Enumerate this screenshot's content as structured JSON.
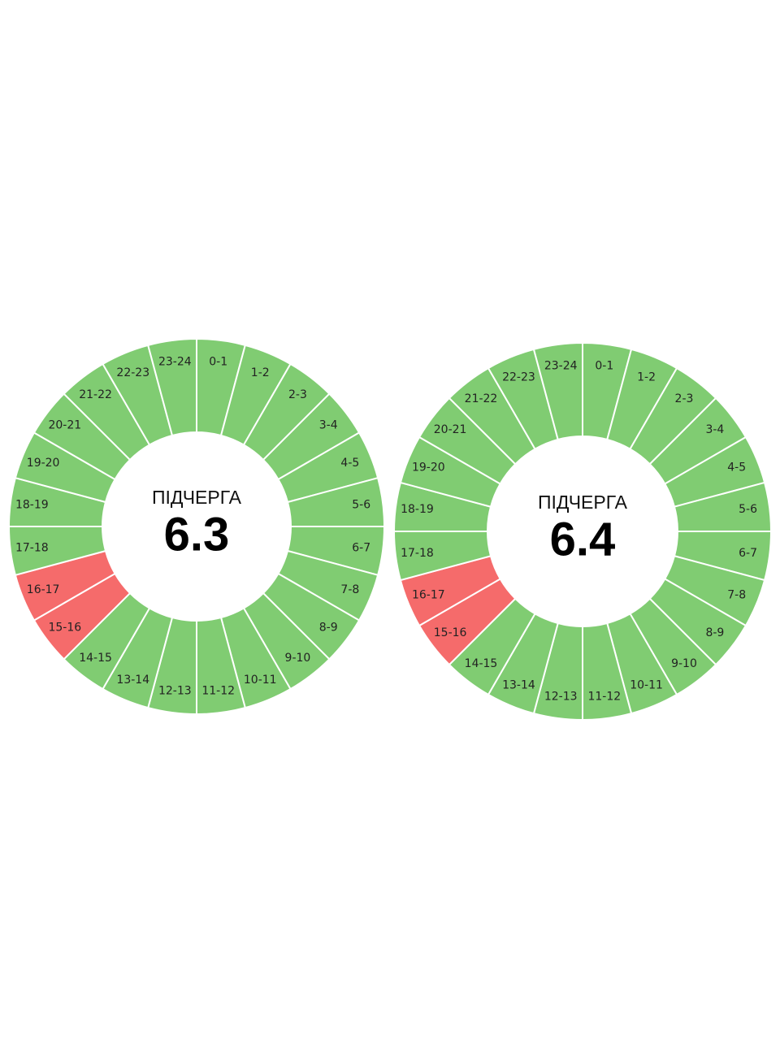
{
  "dials": [
    {
      "title": "ПІДЧЕРГА",
      "number": "6.3",
      "segments": [
        {
          "label": "0-1",
          "color": "#80cc72"
        },
        {
          "label": "1-2",
          "color": "#80cc72"
        },
        {
          "label": "2-3",
          "color": "#80cc72"
        },
        {
          "label": "3-4",
          "color": "#80cc72"
        },
        {
          "label": "4-5",
          "color": "#80cc72"
        },
        {
          "label": "5-6",
          "color": "#80cc72"
        },
        {
          "label": "6-7",
          "color": "#80cc72"
        },
        {
          "label": "7-8",
          "color": "#80cc72"
        },
        {
          "label": "8-9",
          "color": "#80cc72"
        },
        {
          "label": "9-10",
          "color": "#80cc72"
        },
        {
          "label": "10-11",
          "color": "#80cc72"
        },
        {
          "label": "11-12",
          "color": "#80cc72"
        },
        {
          "label": "12-13",
          "color": "#80cc72"
        },
        {
          "label": "13-14",
          "color": "#80cc72"
        },
        {
          "label": "14-15",
          "color": "#80cc72"
        },
        {
          "label": "15-16",
          "color": "#f56b6b"
        },
        {
          "label": "16-17",
          "color": "#f56b6b"
        },
        {
          "label": "17-18",
          "color": "#80cc72"
        },
        {
          "label": "18-19",
          "color": "#80cc72"
        },
        {
          "label": "19-20",
          "color": "#80cc72"
        },
        {
          "label": "20-21",
          "color": "#80cc72"
        },
        {
          "label": "21-22",
          "color": "#80cc72"
        },
        {
          "label": "22-23",
          "color": "#80cc72"
        },
        {
          "label": "23-24",
          "color": "#80cc72"
        }
      ]
    },
    {
      "title": "ПІДЧЕРГА",
      "number": "6.4",
      "segments": [
        {
          "label": "0-1",
          "color": "#80cc72"
        },
        {
          "label": "1-2",
          "color": "#80cc72"
        },
        {
          "label": "2-3",
          "color": "#80cc72"
        },
        {
          "label": "3-4",
          "color": "#80cc72"
        },
        {
          "label": "4-5",
          "color": "#80cc72"
        },
        {
          "label": "5-6",
          "color": "#80cc72"
        },
        {
          "label": "6-7",
          "color": "#80cc72"
        },
        {
          "label": "7-8",
          "color": "#80cc72"
        },
        {
          "label": "8-9",
          "color": "#80cc72"
        },
        {
          "label": "9-10",
          "color": "#80cc72"
        },
        {
          "label": "10-11",
          "color": "#80cc72"
        },
        {
          "label": "11-12",
          "color": "#80cc72"
        },
        {
          "label": "12-13",
          "color": "#80cc72"
        },
        {
          "label": "13-14",
          "color": "#80cc72"
        },
        {
          "label": "14-15",
          "color": "#80cc72"
        },
        {
          "label": "15-16",
          "color": "#f56b6b"
        },
        {
          "label": "16-17",
          "color": "#f56b6b"
        },
        {
          "label": "17-18",
          "color": "#80cc72"
        },
        {
          "label": "18-19",
          "color": "#80cc72"
        },
        {
          "label": "19-20",
          "color": "#80cc72"
        },
        {
          "label": "20-21",
          "color": "#80cc72"
        },
        {
          "label": "21-22",
          "color": "#80cc72"
        },
        {
          "label": "22-23",
          "color": "#80cc72"
        },
        {
          "label": "23-24",
          "color": "#80cc72"
        }
      ]
    }
  ]
}
